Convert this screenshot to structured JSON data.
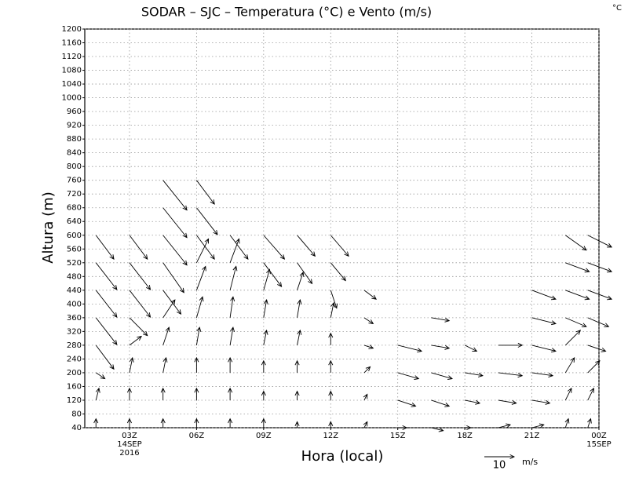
{
  "chart_data": {
    "type": "vector",
    "title": "SODAR – SJC – Temperatura (°C) e Vento (m/s)",
    "corner_label": "°C",
    "x_label": "Hora (local)",
    "y_label": "Altura (m)",
    "xlim": [
      1,
      24
    ],
    "xticks": [
      {
        "value": 3,
        "label": "03Z"
      },
      {
        "value": 6,
        "label": "06Z"
      },
      {
        "value": 9,
        "label": "09Z"
      },
      {
        "value": 12,
        "label": "12Z"
      },
      {
        "value": 15,
        "label": "15Z"
      },
      {
        "value": 18,
        "label": "18Z"
      },
      {
        "value": 21,
        "label": "21Z"
      },
      {
        "value": 24,
        "label": "00Z"
      }
    ],
    "x_sublabels": [
      {
        "value": 3,
        "lines": [
          "14SEP",
          "2016"
        ]
      },
      {
        "value": 24,
        "lines": [
          "15SEP"
        ]
      }
    ],
    "ylim": [
      40,
      1200
    ],
    "yticks": [
      40,
      80,
      120,
      160,
      200,
      240,
      280,
      320,
      360,
      400,
      440,
      480,
      520,
      560,
      600,
      640,
      680,
      720,
      760,
      800,
      840,
      880,
      920,
      960,
      1000,
      1040,
      1080,
      1120,
      1160,
      1200
    ],
    "grid": true,
    "reference": {
      "speed": 10,
      "unit": "m/s"
    },
    "levels": [
      40,
      120,
      200,
      280,
      360,
      440,
      520,
      600,
      680,
      760
    ],
    "wind": [
      {
        "x": 1.5,
        "u": [
          0,
          1,
          3,
          6,
          7,
          7,
          7,
          6,
          null,
          null
        ],
        "v": [
          3,
          4,
          -2,
          -8,
          -9,
          -9,
          -9,
          -8,
          null,
          null
        ]
      },
      {
        "x": 3,
        "u": [
          0,
          0,
          1,
          4,
          6,
          7,
          7,
          6,
          null,
          null
        ],
        "v": [
          3,
          4,
          5,
          3,
          -6,
          -9,
          -9,
          -8,
          null,
          null
        ]
      },
      {
        "x": 4.5,
        "u": [
          0,
          0,
          1,
          2,
          4,
          6,
          7,
          8,
          8,
          8
        ],
        "v": [
          3,
          4,
          5,
          6,
          6,
          -8,
          -10,
          -10,
          -10,
          -10
        ]
      },
      {
        "x": 6,
        "u": [
          0,
          0,
          0,
          1,
          2,
          3,
          4,
          6,
          7,
          6
        ],
        "v": [
          3,
          4,
          5,
          6,
          7,
          8,
          8,
          -8,
          -9,
          -8
        ]
      },
      {
        "x": 7.5,
        "u": [
          0,
          0,
          0,
          1,
          1,
          2,
          3,
          6,
          null,
          null
        ],
        "v": [
          3,
          4,
          5,
          6,
          7,
          8,
          8,
          -8,
          null,
          null
        ]
      },
      {
        "x": 9,
        "u": [
          0,
          0,
          0,
          1,
          1,
          2,
          6,
          7,
          null,
          null
        ],
        "v": [
          3,
          3,
          4,
          5,
          6,
          7,
          -8,
          -8,
          null,
          null
        ]
      },
      {
        "x": 10.5,
        "u": [
          0,
          0,
          0,
          1,
          1,
          2,
          5,
          6,
          null,
          null
        ],
        "v": [
          2,
          3,
          4,
          5,
          6,
          6,
          -7,
          -7,
          null,
          null
        ]
      },
      {
        "x": 12,
        "u": [
          0,
          0,
          0,
          0,
          1,
          2,
          5,
          6,
          null,
          null
        ],
        "v": [
          2,
          3,
          4,
          4,
          5,
          -6,
          -6,
          -7,
          null,
          null
        ]
      },
      {
        "x": 13.5,
        "u": [
          1,
          1,
          2,
          3,
          3,
          4,
          null,
          null,
          null,
          null
        ],
        "v": [
          2,
          2,
          2,
          -1,
          -2,
          -3,
          null,
          null,
          null,
          null
        ]
      },
      {
        "x": 15,
        "u": [
          3,
          6,
          7,
          8,
          null,
          null,
          null,
          null,
          null,
          null
        ],
        "v": [
          0,
          -2,
          -2,
          -2,
          null,
          null,
          null,
          null,
          null,
          null
        ]
      },
      {
        "x": 16.5,
        "u": [
          4,
          6,
          7,
          6,
          6,
          null,
          null,
          null,
          null,
          null
        ],
        "v": [
          -1,
          -2,
          -2,
          -1,
          -1,
          null,
          null,
          null,
          null,
          null
        ]
      },
      {
        "x": 18,
        "u": [
          2,
          5,
          6,
          4,
          null,
          null,
          null,
          null,
          null,
          null
        ],
        "v": [
          0,
          -1,
          -1,
          -2,
          null,
          null,
          null,
          null,
          null,
          null
        ]
      },
      {
        "x": 19.5,
        "u": [
          4,
          6,
          8,
          8,
          null,
          null,
          null,
          null,
          null,
          null
        ],
        "v": [
          1,
          -1,
          -1,
          0,
          null,
          null,
          null,
          null,
          null,
          null
        ]
      },
      {
        "x": 21,
        "u": [
          4,
          6,
          7,
          8,
          8,
          8,
          null,
          null,
          null,
          null
        ],
        "v": [
          1,
          -1,
          -1,
          -2,
          -2,
          -3,
          null,
          null,
          null,
          null
        ]
      },
      {
        "x": 22.5,
        "u": [
          1,
          2,
          3,
          5,
          7,
          8,
          8,
          7,
          null,
          null
        ],
        "v": [
          3,
          4,
          5,
          5,
          -3,
          -3,
          -3,
          -5,
          null,
          null
        ]
      },
      {
        "x": 23.5,
        "u": [
          1,
          2,
          4,
          6,
          7,
          8,
          8,
          8,
          null,
          null
        ],
        "v": [
          3,
          4,
          4,
          -2,
          -3,
          -3,
          -3,
          -4,
          null,
          null
        ]
      }
    ]
  }
}
